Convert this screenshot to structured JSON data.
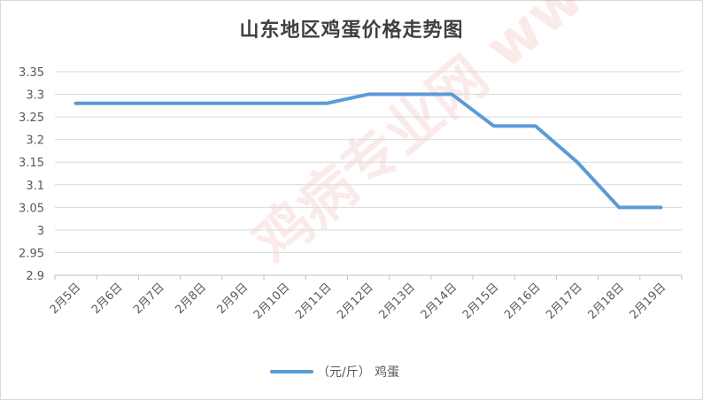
{
  "chart_data": {
    "type": "line",
    "title": "山东地区鸡蛋价格走势图",
    "categories": [
      "2月5日",
      "2月6日",
      "2月7日",
      "2月8日",
      "2月9日",
      "2月10日",
      "2月11日",
      "2月12日",
      "2月13日",
      "2月14日",
      "2月15日",
      "2月16日",
      "2月17日",
      "2月18日",
      "2月19日"
    ],
    "series": [
      {
        "name": "（元/斤） 鸡蛋",
        "values": [
          3.28,
          3.28,
          3.28,
          3.28,
          3.28,
          3.28,
          3.28,
          3.3,
          3.3,
          3.3,
          3.23,
          3.23,
          3.15,
          3.05,
          3.05
        ],
        "color": "#5b9bd5"
      }
    ],
    "ylim": [
      2.9,
      3.35
    ],
    "yticks": [
      "2.9",
      "2.95",
      "3",
      "3.05",
      "3.1",
      "3.15",
      "3.2",
      "3.25",
      "3.3",
      "3.35"
    ],
    "grid": true,
    "legend_position": "bottom",
    "watermark": "鸡病专业网 www.jbzyw.com"
  }
}
